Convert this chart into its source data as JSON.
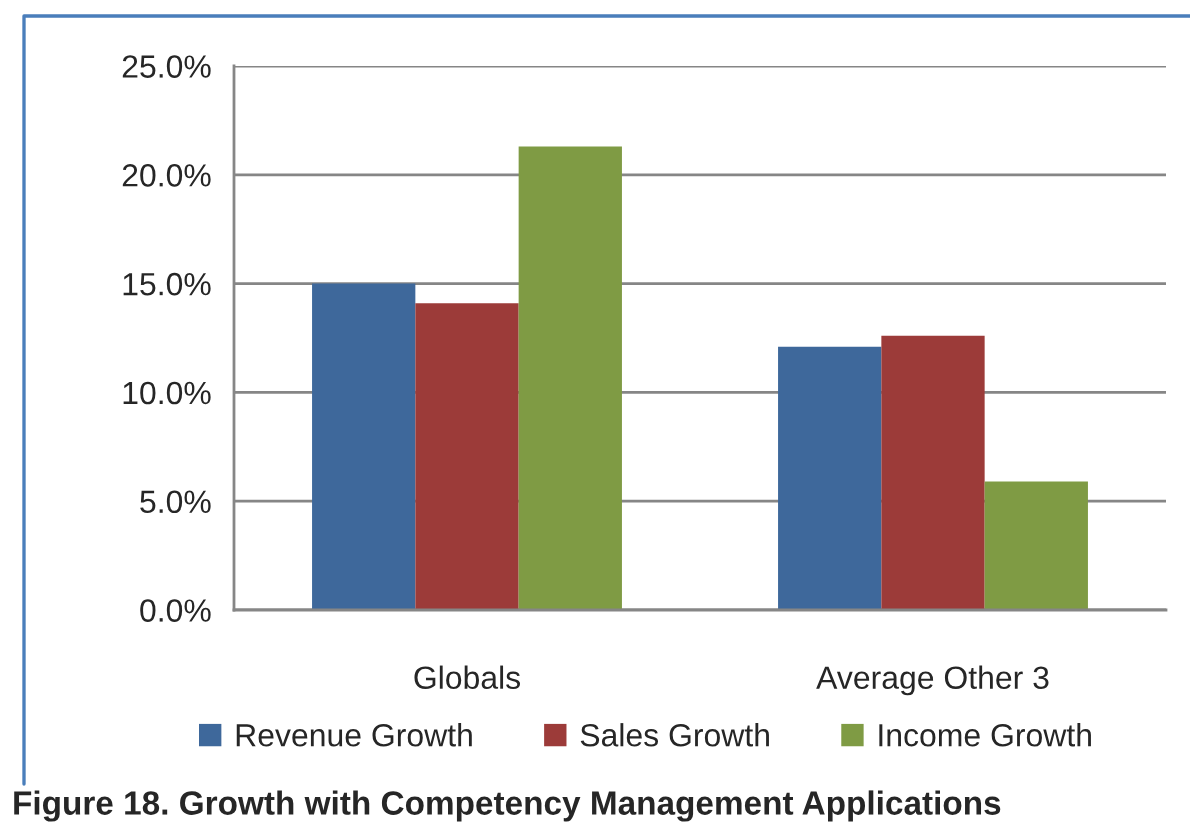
{
  "chart_data": {
    "type": "bar",
    "categories": [
      "Globals",
      "Average Other 3"
    ],
    "series": [
      {
        "name": "Revenue Growth",
        "color": "#3e689b",
        "values": [
          15.0,
          12.1
        ]
      },
      {
        "name": "Sales Growth",
        "color": "#9c3b39",
        "values": [
          14.1,
          12.6
        ]
      },
      {
        "name": "Income Growth",
        "color": "#7f9b44",
        "values": [
          21.3,
          5.9
        ]
      }
    ],
    "ylim": [
      0,
      25
    ],
    "yticks": [
      {
        "value": 0,
        "label": "0.0%"
      },
      {
        "value": 5,
        "label": "5.0%"
      },
      {
        "value": 10,
        "label": "10.0%"
      },
      {
        "value": 15,
        "label": "15.0%"
      },
      {
        "value": 20,
        "label": "20.0%"
      },
      {
        "value": 25,
        "label": "25.0%"
      }
    ],
    "grid": "y",
    "legend": "bottom",
    "annotations": [
      "Figure 18. Growth with Competency Management Applications"
    ]
  }
}
